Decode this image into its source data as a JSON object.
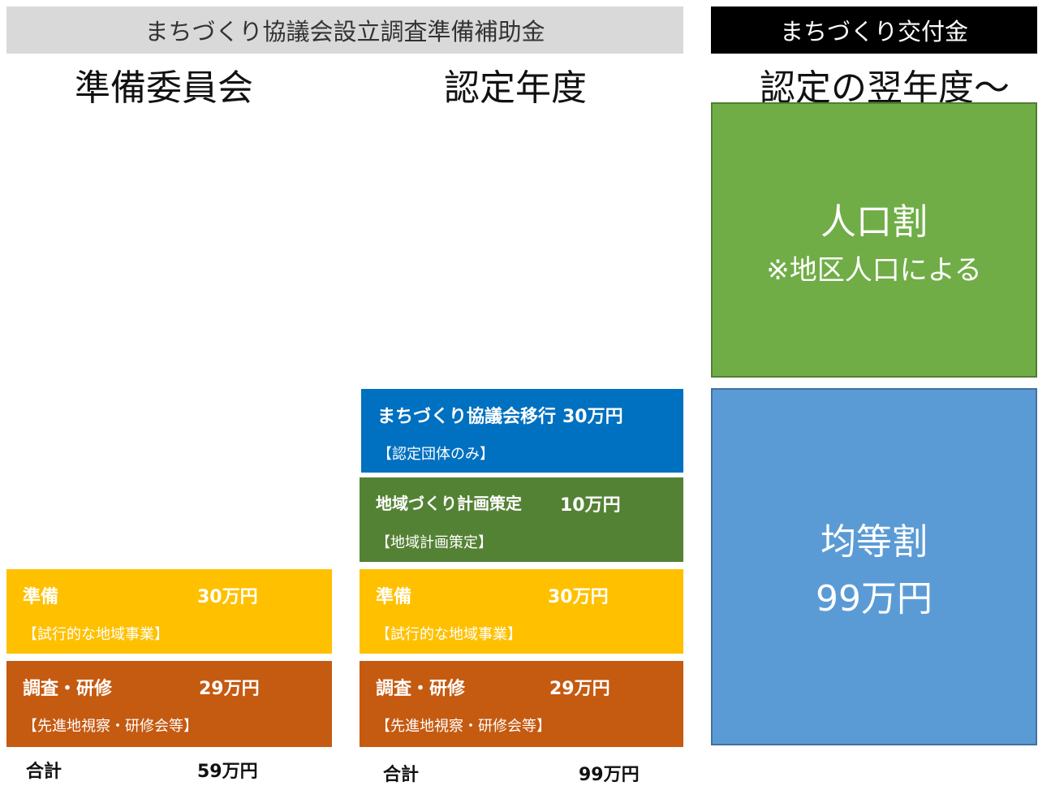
{
  "header": {
    "left": "まちづくり協議会設立調査準備補助金",
    "right": "まちづくり交付金"
  },
  "columns": [
    {
      "heading": "準備委員会",
      "boxes": [
        {
          "title": "準備",
          "amount": "30万円",
          "note": "【試行的な地域事業】"
        },
        {
          "title": "調査・研修",
          "amount": "29万円",
          "note": "【先進地視察・研修会等】"
        }
      ],
      "total": {
        "label": "合計",
        "amount": "59万円"
      }
    },
    {
      "heading": "認定年度",
      "boxes": [
        {
          "title": "まちづくり協議会移行",
          "amount": "30万円",
          "note": "【認定団体のみ】"
        },
        {
          "title": "地域づくり計画策定",
          "amount": "10万円",
          "note": "【地域計画策定】"
        },
        {
          "title": "準備",
          "amount": "30万円",
          "note": "【試行的な地域事業】"
        },
        {
          "title": "調査・研修",
          "amount": "29万円",
          "note": "【先進地視察・研修会等】"
        }
      ],
      "total": {
        "label": "合計",
        "amount": "99万円"
      }
    },
    {
      "heading": "認定の翌年度～",
      "boxes": [
        {
          "title": "人口割",
          "note": "※地区人口による"
        },
        {
          "title": "均等割",
          "amount": "99万円"
        }
      ]
    }
  ]
}
